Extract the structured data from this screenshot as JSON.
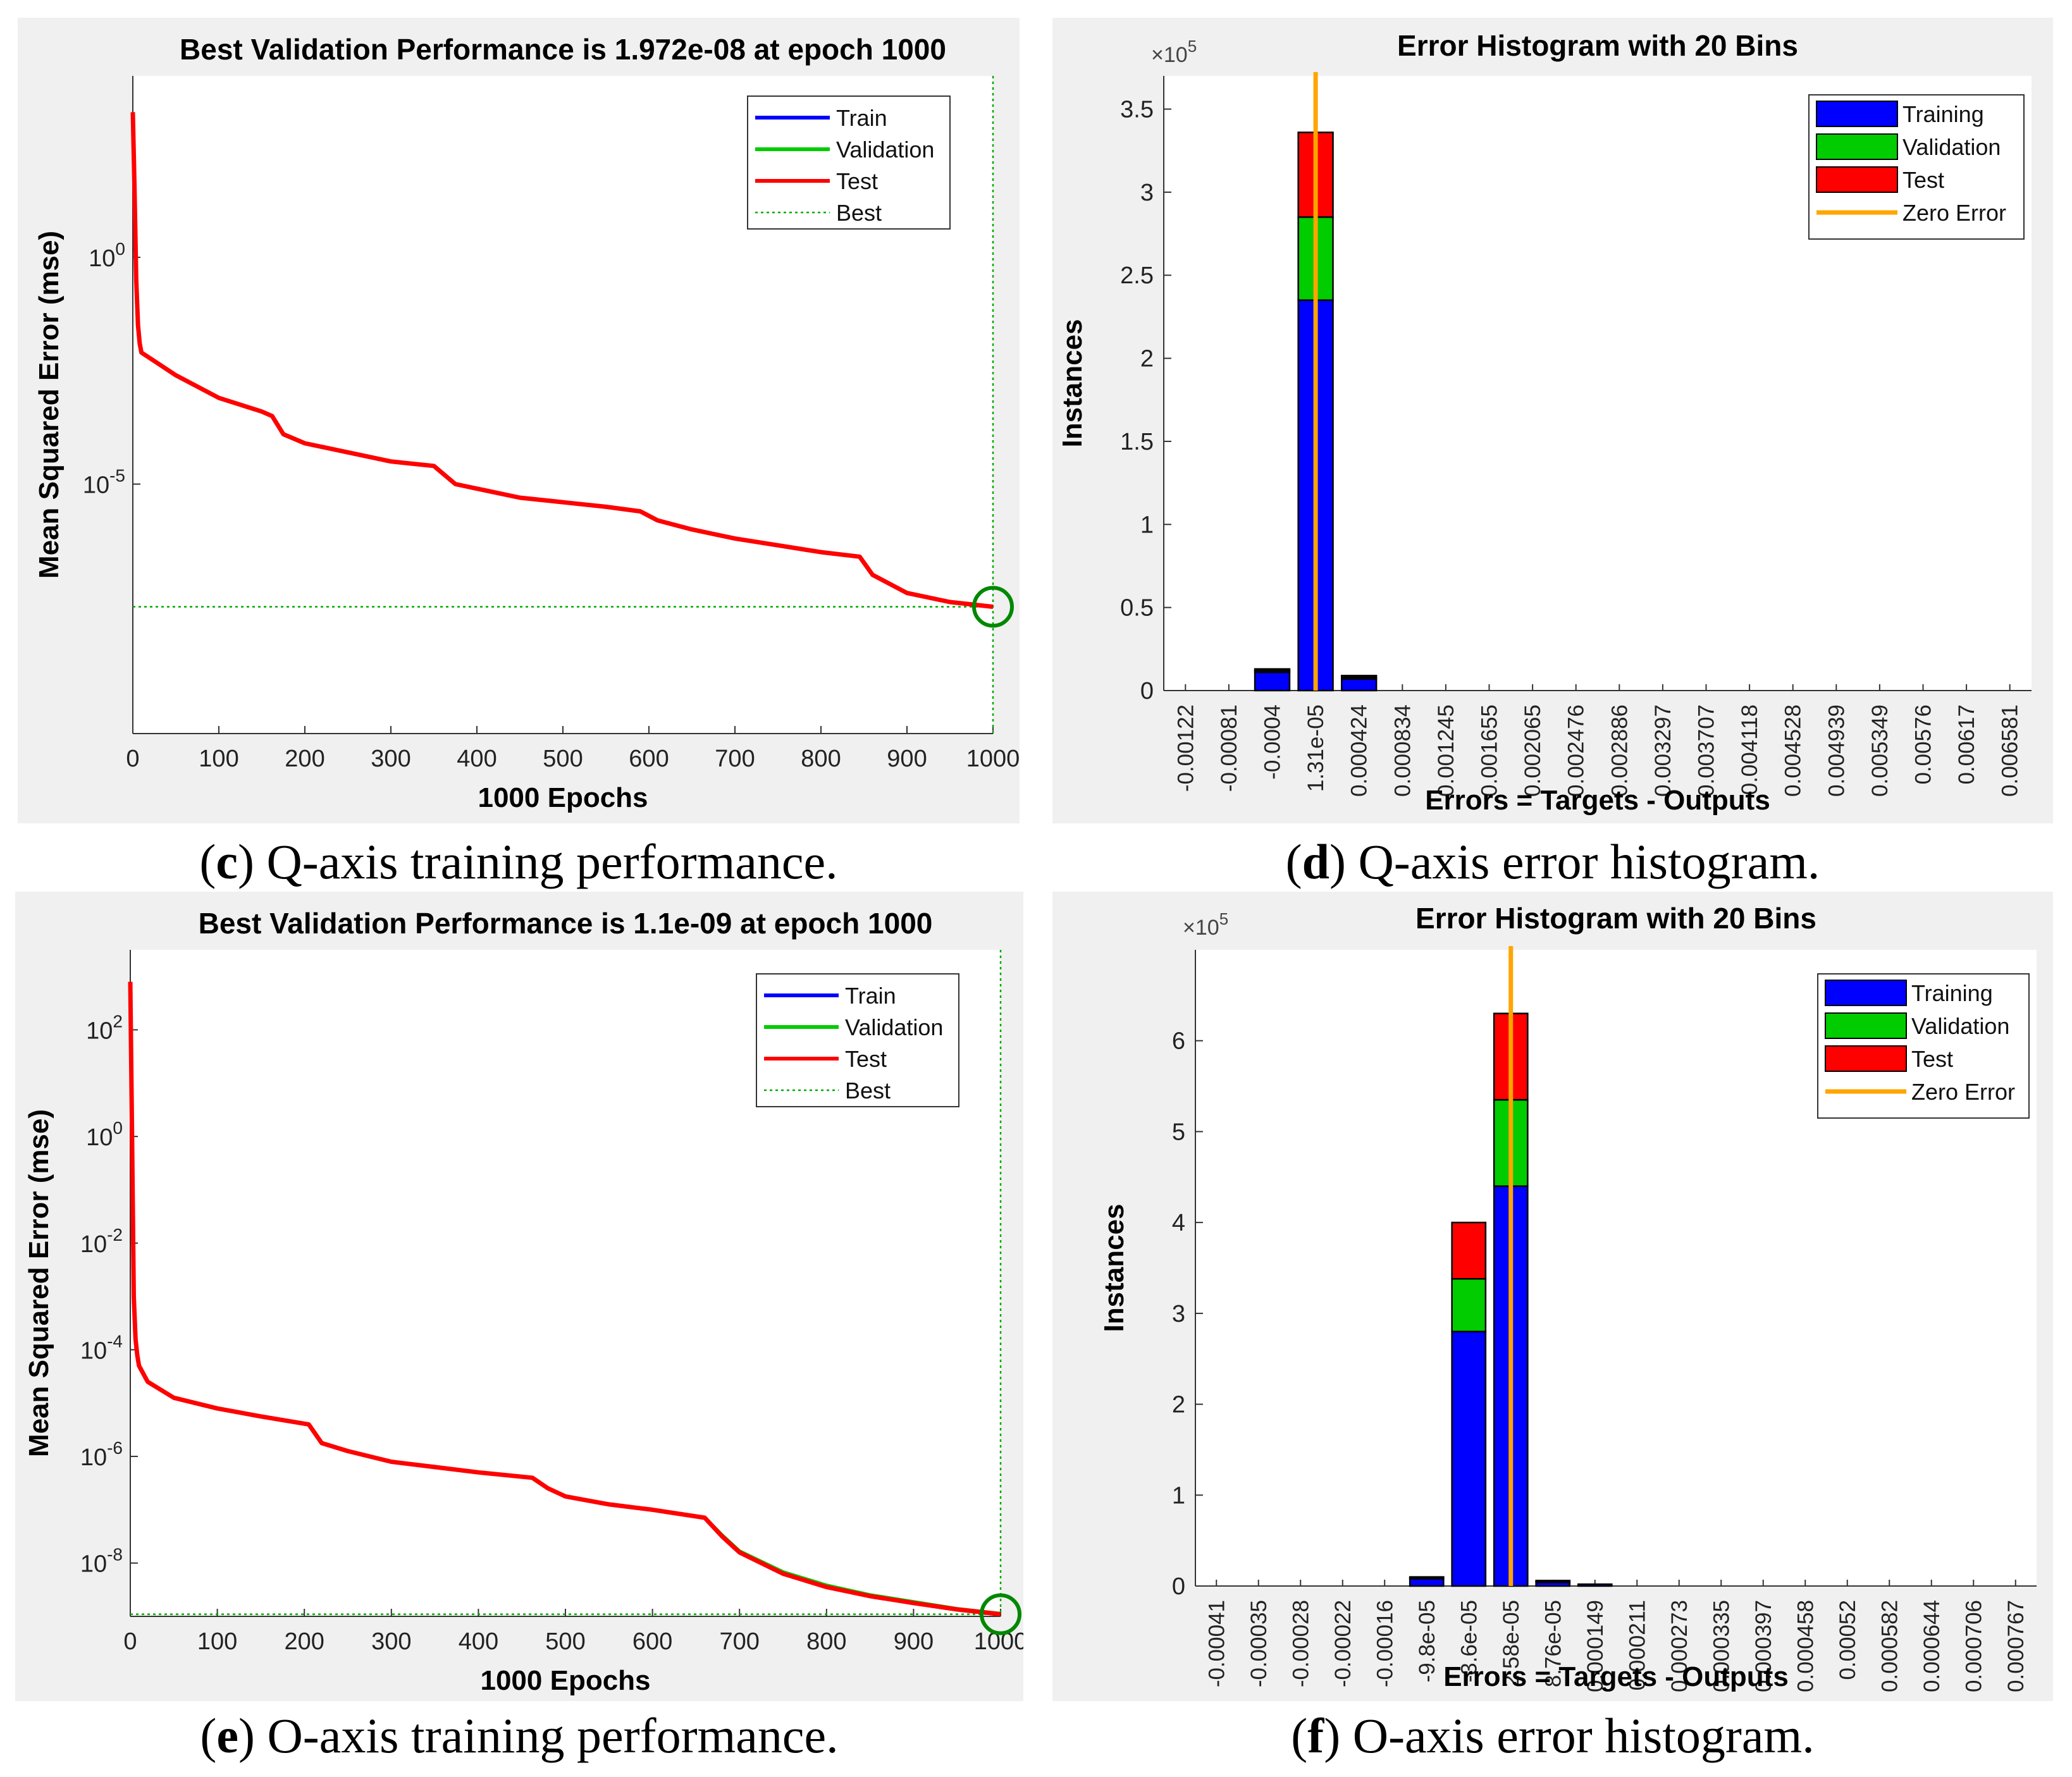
{
  "captions": [
    {
      "letter": "c",
      "text": ") Q-axis training performance."
    },
    {
      "letter": "d",
      "text": ") Q-axis error histogram."
    },
    {
      "letter": "e",
      "text": ") O-axis training performance."
    },
    {
      "letter": "f",
      "text": ") O-axis error histogram."
    }
  ],
  "colors": {
    "train": "#0000ff",
    "validation": "#00cc00",
    "test": "#ff0000",
    "best": "#00aa00",
    "zero_error": "#ffa500",
    "panel_bg": "#f0f0f0"
  },
  "chart_data": [
    {
      "type": "line",
      "title": "Best Validation Performance is 1.972e-08 at epoch 1000",
      "xlabel": "1000 Epochs",
      "ylabel": "Mean Squared Error  (mse)",
      "yscale": "log",
      "xlim": [
        0,
        1000
      ],
      "ylim_log10": [
        -10.5,
        4
      ],
      "xticks": [
        "0",
        "100",
        "200",
        "300",
        "400",
        "500",
        "600",
        "700",
        "800",
        "900",
        "1000"
      ],
      "yticks": [
        {
          "label": "10",
          "exp": "0",
          "value": 0
        },
        {
          "label": "10",
          "exp": "-5",
          "value": -5
        }
      ],
      "legend": [
        "Train",
        "Validation",
        "Test",
        "Best"
      ],
      "legend_position": "top-right",
      "best": {
        "epoch": 1000,
        "log10_mse": -7.705
      },
      "series": [
        {
          "name": "Train",
          "x": [
            0,
            2,
            4,
            6,
            8,
            10,
            50,
            100,
            150,
            162,
            175,
            200,
            250,
            300,
            350,
            375,
            400,
            450,
            500,
            550,
            590,
            610,
            650,
            700,
            750,
            800,
            845,
            860,
            900,
            950,
            1000
          ],
          "log10_y": [
            3.2,
            1.5,
            -0.5,
            -1.5,
            -1.9,
            -2.1,
            -2.6,
            -3.1,
            -3.4,
            -3.5,
            -3.9,
            -4.1,
            -4.3,
            -4.5,
            -4.6,
            -5.0,
            -5.1,
            -5.3,
            -5.4,
            -5.5,
            -5.6,
            -5.8,
            -6.0,
            -6.2,
            -6.35,
            -6.5,
            -6.6,
            -7.0,
            -7.4,
            -7.6,
            -7.705
          ]
        },
        {
          "name": "Validation",
          "x": [
            0,
            2,
            4,
            6,
            8,
            10,
            50,
            100,
            150,
            162,
            175,
            200,
            250,
            300,
            350,
            375,
            400,
            450,
            500,
            550,
            590,
            610,
            650,
            700,
            750,
            800,
            845,
            860,
            900,
            950,
            1000
          ],
          "log10_y": [
            3.2,
            1.5,
            -0.5,
            -1.5,
            -1.9,
            -2.1,
            -2.6,
            -3.1,
            -3.4,
            -3.5,
            -3.9,
            -4.1,
            -4.3,
            -4.5,
            -4.6,
            -5.0,
            -5.1,
            -5.3,
            -5.4,
            -5.5,
            -5.6,
            -5.8,
            -6.0,
            -6.2,
            -6.35,
            -6.5,
            -6.6,
            -7.0,
            -7.4,
            -7.6,
            -7.705
          ]
        },
        {
          "name": "Test",
          "x": [
            0,
            2,
            4,
            6,
            8,
            10,
            50,
            100,
            150,
            162,
            175,
            200,
            250,
            300,
            350,
            375,
            400,
            450,
            500,
            550,
            590,
            610,
            650,
            700,
            750,
            800,
            845,
            860,
            900,
            950,
            1000
          ],
          "log10_y": [
            3.2,
            1.5,
            -0.5,
            -1.5,
            -1.9,
            -2.1,
            -2.6,
            -3.1,
            -3.4,
            -3.5,
            -3.9,
            -4.1,
            -4.3,
            -4.5,
            -4.6,
            -5.0,
            -5.1,
            -5.3,
            -5.4,
            -5.5,
            -5.6,
            -5.8,
            -6.0,
            -6.2,
            -6.35,
            -6.5,
            -6.6,
            -7.0,
            -7.4,
            -7.6,
            -7.705
          ]
        }
      ]
    },
    {
      "type": "bar",
      "title": "Error Histogram with 20 Bins",
      "xlabel": "Errors = Targets - Outputs",
      "ylabel": "Instances",
      "scale_label": "×10",
      "scale_exp": "5",
      "ylim": [
        0,
        3.7
      ],
      "yticks": [
        0,
        0.5,
        1,
        1.5,
        2,
        2.5,
        3,
        3.5
      ],
      "ytick_labels": [
        "0",
        "0.5",
        "1",
        "1.5",
        "2",
        "2.5",
        "3",
        "3.5"
      ],
      "zero_error_bin": 3,
      "categories": [
        "-0.00122",
        "-0.00081",
        "-0.0004",
        "1.31e-05",
        "0.000424",
        "0.000834",
        "0.001245",
        "0.001655",
        "0.002065",
        "0.002476",
        "0.002886",
        "0.003297",
        "0.003707",
        "0.004118",
        "0.004528",
        "0.004939",
        "0.005349",
        "0.00576",
        "0.00617",
        "0.006581"
      ],
      "legend": [
        "Training",
        "Validation",
        "Test",
        "Zero Error"
      ],
      "legend_position": "top-right",
      "series": [
        {
          "name": "Training",
          "values": [
            0,
            0,
            0.11,
            2.35,
            0.07,
            0,
            0,
            0,
            0,
            0,
            0,
            0,
            0,
            0,
            0,
            0,
            0,
            0,
            0,
            0
          ]
        },
        {
          "name": "Validation",
          "values": [
            0,
            0,
            0.01,
            0.5,
            0.01,
            0,
            0,
            0,
            0,
            0,
            0,
            0,
            0,
            0,
            0,
            0,
            0,
            0,
            0,
            0
          ]
        },
        {
          "name": "Test",
          "values": [
            0,
            0,
            0.01,
            0.51,
            0.01,
            0,
            0,
            0,
            0,
            0,
            0,
            0,
            0,
            0,
            0,
            0,
            0,
            0,
            0,
            0
          ]
        }
      ]
    },
    {
      "type": "line",
      "title": "Best Validation Performance is 1.1e-09 at epoch 1000",
      "xlabel": "1000 Epochs",
      "ylabel": "Mean Squared Error  (mse)",
      "yscale": "log",
      "xlim": [
        0,
        1000
      ],
      "ylim_log10": [
        -9,
        3.5
      ],
      "xticks": [
        "0",
        "100",
        "200",
        "300",
        "400",
        "500",
        "600",
        "700",
        "800",
        "900",
        "1000"
      ],
      "yticks": [
        {
          "label": "10",
          "exp": "2",
          "value": 2
        },
        {
          "label": "10",
          "exp": "0",
          "value": 0
        },
        {
          "label": "10",
          "exp": "-2",
          "value": -2
        },
        {
          "label": "10",
          "exp": "-4",
          "value": -4
        },
        {
          "label": "10",
          "exp": "-6",
          "value": -6
        },
        {
          "label": "10",
          "exp": "-8",
          "value": -8
        }
      ],
      "legend": [
        "Train",
        "Validation",
        "Test",
        "Best"
      ],
      "legend_position": "top-right",
      "best": {
        "epoch": 1000,
        "log10_mse": -8.96
      },
      "series": [
        {
          "name": "Train",
          "x": [
            0,
            2,
            4,
            6,
            8,
            10,
            20,
            50,
            100,
            150,
            205,
            220,
            250,
            300,
            350,
            400,
            462,
            480,
            500,
            550,
            600,
            660,
            680,
            700,
            750,
            800,
            850,
            900,
            950,
            1000
          ],
          "log10_y": [
            2.9,
            0,
            -3,
            -3.8,
            -4.1,
            -4.3,
            -4.6,
            -4.9,
            -5.1,
            -5.25,
            -5.4,
            -5.75,
            -5.9,
            -6.1,
            -6.2,
            -6.3,
            -6.4,
            -6.6,
            -6.75,
            -6.9,
            -7.0,
            -7.15,
            -7.5,
            -7.8,
            -8.2,
            -8.45,
            -8.62,
            -8.75,
            -8.87,
            -8.96
          ]
        },
        {
          "name": "Validation",
          "x": [
            0,
            2,
            4,
            6,
            8,
            10,
            20,
            50,
            100,
            150,
            205,
            220,
            250,
            300,
            350,
            400,
            462,
            480,
            500,
            550,
            600,
            660,
            680,
            700,
            750,
            800,
            850,
            900,
            950,
            1000
          ],
          "log10_y": [
            2.9,
            0,
            -3,
            -3.8,
            -4.1,
            -4.3,
            -4.6,
            -4.9,
            -5.1,
            -5.25,
            -5.4,
            -5.75,
            -5.9,
            -6.1,
            -6.2,
            -6.3,
            -6.4,
            -6.6,
            -6.75,
            -6.9,
            -7.0,
            -7.15,
            -7.48,
            -7.78,
            -8.17,
            -8.42,
            -8.6,
            -8.73,
            -8.86,
            -8.95
          ]
        },
        {
          "name": "Test",
          "x": [
            0,
            2,
            4,
            6,
            8,
            10,
            20,
            50,
            100,
            150,
            205,
            220,
            250,
            300,
            350,
            400,
            462,
            480,
            500,
            550,
            600,
            660,
            680,
            700,
            750,
            800,
            850,
            900,
            950,
            1000
          ],
          "log10_y": [
            2.9,
            0,
            -3,
            -3.8,
            -4.1,
            -4.3,
            -4.6,
            -4.9,
            -5.1,
            -5.25,
            -5.4,
            -5.75,
            -5.9,
            -6.1,
            -6.2,
            -6.3,
            -6.4,
            -6.6,
            -6.75,
            -6.9,
            -7.0,
            -7.15,
            -7.5,
            -7.8,
            -8.2,
            -8.45,
            -8.62,
            -8.75,
            -8.87,
            -8.96
          ]
        }
      ]
    },
    {
      "type": "bar",
      "title": "Error Histogram with 20 Bins",
      "xlabel": "Errors = Targets - Outputs",
      "ylabel": "Instances",
      "scale_label": "×10",
      "scale_exp": "5",
      "ylim": [
        0,
        7
      ],
      "yticks": [
        0,
        1,
        2,
        3,
        4,
        5,
        6
      ],
      "ytick_labels": [
        "0",
        "1",
        "2",
        "3",
        "4",
        "5",
        "6"
      ],
      "zero_error_bin": 7,
      "categories": [
        "-0.00041",
        "-0.00035",
        "-0.00028",
        "-0.00022",
        "-0.00016",
        "-9.8e-05",
        "-3.6e-05",
        "2.58e-05",
        "8.76e-05",
        "0.000149",
        "0.000211",
        "0.000273",
        "0.000335",
        "0.000397",
        "0.000458",
        "0.00052",
        "0.000582",
        "0.000644",
        "0.000706",
        "0.000767"
      ],
      "legend": [
        "Training",
        "Validation",
        "Test",
        "Zero Error"
      ],
      "legend_position": "top-right",
      "series": [
        {
          "name": "Training",
          "values": [
            0,
            0,
            0,
            0,
            0,
            0.08,
            2.8,
            4.4,
            0.04,
            0.02,
            0,
            0,
            0,
            0,
            0,
            0,
            0,
            0,
            0,
            0
          ]
        },
        {
          "name": "Validation",
          "values": [
            0,
            0,
            0,
            0,
            0,
            0.01,
            0.58,
            0.95,
            0.01,
            0,
            0,
            0,
            0,
            0,
            0,
            0,
            0,
            0,
            0,
            0
          ]
        },
        {
          "name": "Test",
          "values": [
            0,
            0,
            0,
            0,
            0,
            0.01,
            0.62,
            0.95,
            0.01,
            0,
            0,
            0,
            0,
            0,
            0,
            0,
            0,
            0,
            0,
            0
          ]
        }
      ]
    }
  ]
}
